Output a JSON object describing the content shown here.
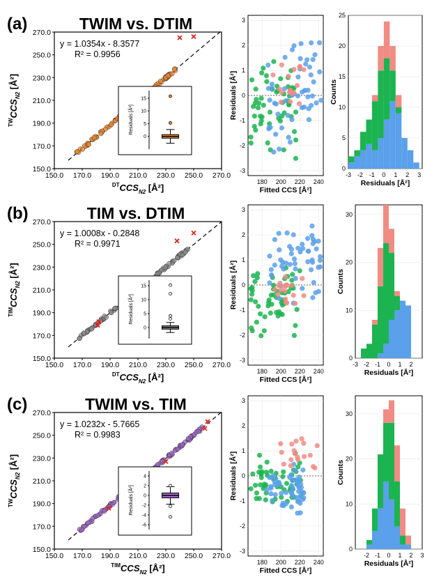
{
  "colors": {
    "orange": "#f08a2c",
    "gray": "#8c8c8c",
    "purple": "#a066c8",
    "green": "#1bb450",
    "blue": "#5aa0ea",
    "pink": "#f08c84",
    "outlier": "#e0241c"
  },
  "panels": [
    {
      "label": "(a)",
      "title": "TWIM vs. DTIM",
      "scatter_ylabel": "TWCCSN2 [Å²]",
      "scatter_xlabel": "DTCCSN2 [Å²]",
      "equation": "y = 1.0354x - 8.3577",
      "r2": "R² = 0.9956",
      "inset_ylabel": "Residuals [Å²]",
      "residual_ylabel": "Residuals [Å²]",
      "residual_xlabel": "Fitted CCS [Å²]",
      "hist_ylabel": "Counts",
      "hist_xlabel": "Residuals [Å²]"
    },
    {
      "label": "(b)",
      "title": "TIM vs. DTIM",
      "scatter_ylabel": "TIMCCSN2 [Å²]",
      "scatter_xlabel": "DTCCSN2 [Å²]",
      "equation": "y = 1.0008x - 0.2848",
      "r2": "R² = 0.9971",
      "inset_ylabel": "Residuals [Å²]",
      "residual_ylabel": "Residuals [Å²]",
      "residual_xlabel": "Fitted CCS [Å²]",
      "hist_ylabel": "Counts",
      "hist_xlabel": "Residuals [Å²]"
    },
    {
      "label": "(c)",
      "title": "TWIM vs. TIM",
      "scatter_ylabel": "TWCCSN2 [Å²]",
      "scatter_xlabel": "TIMCCSN2 [Å²]",
      "equation": "y = 1.0232x - 5.7665",
      "r2": "R² = 0.9983",
      "inset_ylabel": "Residuals [Å²]",
      "residual_ylabel": "Residuals [Å²]",
      "residual_xlabel": "Fitted CCS [Å²]",
      "hist_ylabel": "Counts",
      "hist_xlabel": "Residuals [Å²]"
    }
  ],
  "chart_data": [
    {
      "panel": "(a)",
      "type": "scatter",
      "role": "correlation",
      "xlim": [
        150,
        270
      ],
      "ylim": [
        150,
        270
      ],
      "xticks": [
        "150.0",
        "170.0",
        "190.0",
        "210.0",
        "230.0",
        "250.0",
        "270.0"
      ],
      "yticks": [
        "150.0",
        "170.0",
        "190.0",
        "210.0",
        "230.0",
        "250.0",
        "270.0"
      ],
      "fit": {
        "slope": 1.0354,
        "intercept": -8.3577,
        "style": "dashed"
      },
      "point_color": "orange",
      "x_range_points": [
        166,
        237
      ],
      "outliers": [
        [
          240,
          265
        ],
        [
          250,
          266
        ]
      ],
      "marker": "o"
    },
    {
      "panel": "(a)",
      "type": "boxplot",
      "role": "inset",
      "ylim": [
        -5,
        18
      ],
      "yticks": [
        "0",
        "5",
        "10",
        "15"
      ],
      "box": {
        "q1": -0.7,
        "median": 0,
        "q3": 0.7,
        "whisker_low": -2.7,
        "whisker_high": 2.7
      },
      "fliers": [
        5.3,
        15.8
      ],
      "color": "orange"
    },
    {
      "panel": "(a)",
      "type": "scatter",
      "role": "residuals-vs-fitted",
      "xlim": [
        165,
        245
      ],
      "ylim": [
        -3.2,
        3.2
      ],
      "xticks": [
        "180",
        "200",
        "220",
        "240"
      ],
      "yticks": [
        "3",
        "2",
        "1",
        "0",
        "-1",
        "-2",
        "-3"
      ],
      "series": [
        {
          "color": "green",
          "x_range": [
            168,
            218
          ],
          "y_range": [
            -2.8,
            1.5
          ]
        },
        {
          "color": "blue",
          "x_range": [
            185,
            243
          ],
          "y_range": [
            -2.4,
            2.8
          ]
        },
        {
          "color": "pink",
          "x_range": [
            190,
            225
          ],
          "y_range": [
            -0.8,
            1.6
          ]
        }
      ]
    },
    {
      "panel": "(a)",
      "type": "bar",
      "role": "histogram-stacked",
      "x": [
        -2.75,
        -2.25,
        -1.75,
        -1.25,
        -0.75,
        -0.25,
        0.25,
        0.75,
        1.25,
        1.75,
        2.25,
        2.75
      ],
      "ylim": [
        0,
        25
      ],
      "yticks": [
        "0",
        "5",
        "10",
        "15",
        "20",
        "25"
      ],
      "xticks": [
        "-3",
        "-2",
        "-1",
        "0",
        "1",
        "2",
        "3"
      ],
      "series": [
        {
          "color": "blue",
          "values": [
            1,
            2,
            3,
            4,
            3,
            5,
            8,
            11,
            9,
            5,
            3,
            1
          ]
        },
        {
          "color": "green",
          "values": [
            1,
            1,
            3,
            4,
            8,
            11,
            10,
            5,
            1,
            0,
            0,
            0
          ]
        },
        {
          "color": "pink",
          "values": [
            0,
            0,
            0,
            0,
            1,
            4,
            6,
            4,
            2,
            0,
            0,
            0
          ]
        }
      ]
    },
    {
      "panel": "(b)",
      "type": "scatter",
      "role": "correlation",
      "xlim": [
        150,
        270
      ],
      "ylim": [
        150,
        270
      ],
      "xticks": [
        "150.0",
        "170.0",
        "190.0",
        "210.0",
        "230.0",
        "250.0",
        "270.0"
      ],
      "yticks": [
        "150.0",
        "170.0",
        "190.0",
        "210.0",
        "230.0",
        "250.0",
        "270.0"
      ],
      "fit": {
        "slope": 1.0008,
        "intercept": -0.2848,
        "style": "dashed"
      },
      "point_color": "gray",
      "x_range_points": [
        167,
        246
      ],
      "outliers": [
        [
          238,
          253
        ],
        [
          250,
          260
        ],
        [
          214,
          215
        ],
        [
          181,
          179
        ],
        [
          182,
          182
        ]
      ],
      "marker": "o"
    },
    {
      "panel": "(b)",
      "type": "boxplot",
      "role": "inset",
      "ylim": [
        -4,
        17
      ],
      "yticks": [
        "0",
        "5",
        "10",
        "15"
      ],
      "box": {
        "q1": -0.6,
        "median": 0,
        "q3": 0.6,
        "whisker_low": -1.8,
        "whisker_high": 1.8
      },
      "fliers": [
        3.1,
        4.2,
        12.1,
        15.2
      ],
      "color": "gray"
    },
    {
      "panel": "(b)",
      "type": "scatter",
      "role": "residuals-vs-fitted",
      "xlim": [
        165,
        245
      ],
      "ylim": [
        -3.2,
        3.2
      ],
      "xticks": [
        "180",
        "200",
        "220",
        "240"
      ],
      "yticks": [
        "3",
        "2",
        "1",
        "0",
        "-1",
        "-2",
        "-3"
      ],
      "series": [
        {
          "color": "green",
          "x_range": [
            168,
            222
          ],
          "y_range": [
            -2.1,
            0.9
          ]
        },
        {
          "color": "blue",
          "x_range": [
            188,
            243
          ],
          "y_range": [
            -1.0,
            2.8
          ]
        },
        {
          "color": "pink",
          "x_range": [
            190,
            225
          ],
          "y_range": [
            -1.2,
            0.5
          ]
        }
      ]
    },
    {
      "panel": "(b)",
      "type": "bar",
      "role": "histogram-stacked",
      "x": [
        -2.25,
        -1.75,
        -1.25,
        -0.75,
        -0.25,
        0.25,
        0.75,
        1.25,
        1.75,
        2.25
      ],
      "ylim": [
        0,
        32
      ],
      "yticks": [
        "0",
        "10",
        "20",
        "30"
      ],
      "xticks": [
        "-3",
        "-2",
        "-1",
        "0",
        "1",
        "2"
      ],
      "series": [
        {
          "color": "blue",
          "values": [
            0,
            0,
            0,
            1,
            3,
            8,
            10,
            12,
            11,
            0
          ]
        },
        {
          "color": "green",
          "values": [
            2,
            3,
            7,
            14,
            21,
            14,
            3,
            0,
            0,
            0
          ]
        },
        {
          "color": "pink",
          "values": [
            0,
            0,
            1,
            8,
            8,
            5,
            1,
            0,
            0,
            0
          ]
        }
      ]
    },
    {
      "panel": "(c)",
      "type": "scatter",
      "role": "correlation",
      "xlim": [
        150,
        270
      ],
      "ylim": [
        150,
        270
      ],
      "xticks": [
        "150.0",
        "170.0",
        "190.0",
        "210.0",
        "230.0",
        "250.0",
        "270.0"
      ],
      "yticks": [
        "150.0",
        "170.0",
        "190.0",
        "210.0",
        "230.0",
        "250.0",
        "270.0"
      ],
      "fit": {
        "slope": 1.0232,
        "intercept": -5.7665,
        "style": "dashed"
      },
      "point_color": "purple",
      "x_range_points": [
        167,
        256
      ],
      "outliers": [
        [
          260,
          262
        ],
        [
          258,
          256
        ],
        [
          230,
          227
        ],
        [
          189,
          186
        ]
      ],
      "marker": "o"
    },
    {
      "panel": "(c)",
      "type": "boxplot",
      "role": "inset",
      "ylim": [
        -7,
        5
      ],
      "yticks": [
        "4",
        "2",
        "0",
        "-2",
        "-4",
        "-6"
      ],
      "box": {
        "q1": -0.5,
        "median": 0,
        "q3": 0.5,
        "whisker_low": -1.8,
        "whisker_high": 1.8
      },
      "fliers": [
        -2.2,
        -4.4,
        2.0
      ],
      "color": "purple"
    },
    {
      "panel": "(c)",
      "type": "scatter",
      "role": "residuals-vs-fitted",
      "xlim": [
        165,
        245
      ],
      "ylim": [
        -3.2,
        3.2
      ],
      "xticks": [
        "180",
        "200",
        "220",
        "240"
      ],
      "yticks": [
        "3",
        "2",
        "1",
        "0",
        "-1",
        "-2",
        "-3"
      ],
      "series": [
        {
          "color": "green",
          "x_range": [
            168,
            222
          ],
          "y_range": [
            -1.4,
            1.0
          ]
        },
        {
          "color": "blue",
          "x_range": [
            185,
            225
          ],
          "y_range": [
            -1.7,
            0.5
          ]
        },
        {
          "color": "pink",
          "x_range": [
            195,
            243
          ],
          "y_range": [
            0.2,
            1.6
          ]
        }
      ]
    },
    {
      "panel": "(c)",
      "type": "bar",
      "role": "histogram-stacked",
      "x": [
        -1.75,
        -1.25,
        -0.75,
        -0.25,
        0.25,
        0.75,
        1.25,
        1.75
      ],
      "ylim": [
        0,
        34
      ],
      "yticks": [
        "0",
        "10",
        "20",
        "30"
      ],
      "xticks": [
        "-2",
        "-1",
        "0",
        "1",
        "2",
        "3"
      ],
      "series": [
        {
          "color": "blue",
          "values": [
            1,
            4,
            9,
            15,
            11,
            5,
            1,
            1
          ]
        },
        {
          "color": "green",
          "values": [
            1,
            5,
            12,
            13,
            17,
            10,
            2,
            0
          ]
        },
        {
          "color": "pink",
          "values": [
            0,
            0,
            0,
            3,
            5,
            8,
            6,
            2
          ]
        }
      ]
    }
  ]
}
